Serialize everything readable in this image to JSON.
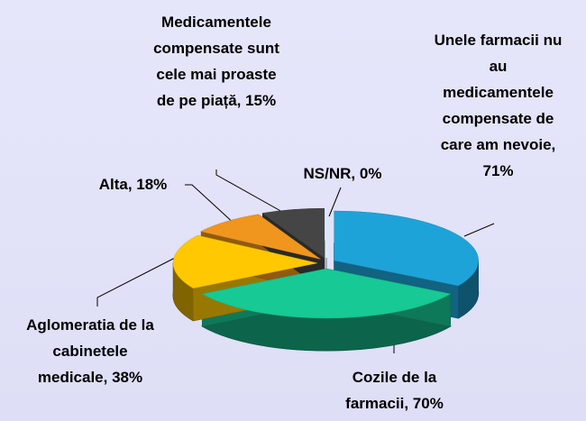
{
  "chart_data": {
    "type": "pie3d",
    "value_labels": [
      "Unele farmacii nu au medicamentele compensate de care am nevoie, 71%",
      "Cozile de la farmacii, 70%",
      "Aglomeratia de la cabinetele medicale, 38%",
      "Alta, 18%",
      "Medicamentele compensate sunt cele mai proaste de pe piață, 15%",
      "NS/NR, 0%"
    ],
    "values": [
      71,
      70,
      38,
      18,
      15,
      0
    ],
    "colors": [
      "#1ea3d8",
      "#17c994",
      "#ffc800",
      "#f0961e",
      "#454545",
      "#d6ebff"
    ]
  }
}
